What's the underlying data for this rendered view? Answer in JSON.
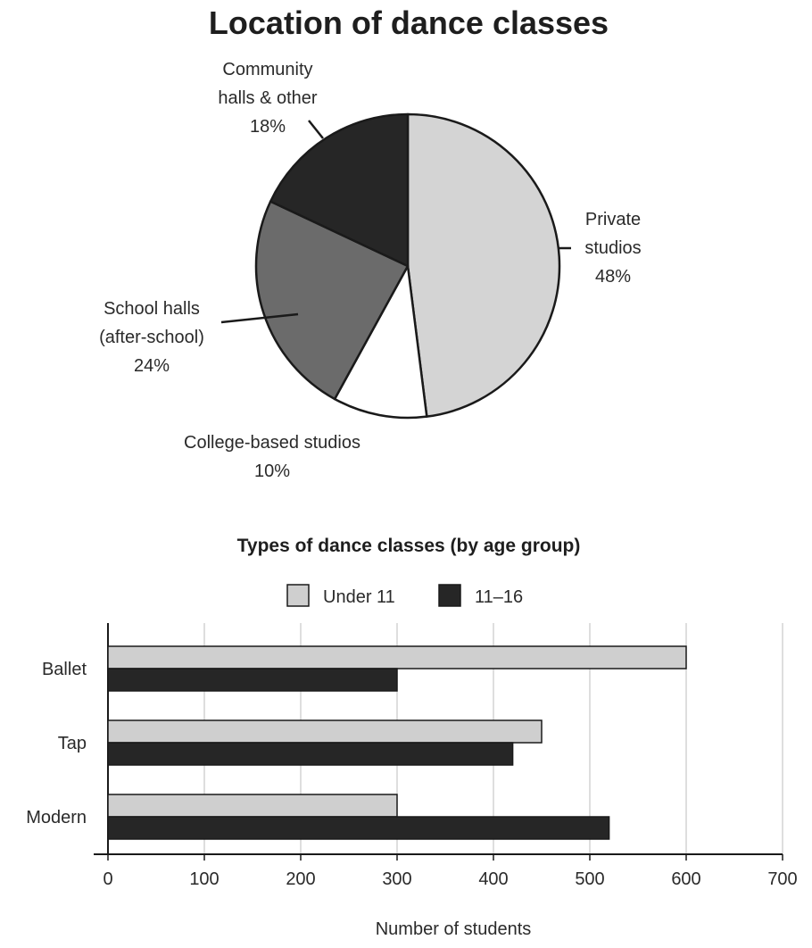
{
  "chart_data": [
    {
      "type": "pie",
      "title": "Location of dance classes",
      "slices": [
        {
          "lines": [
            "Private",
            "studios"
          ],
          "pct_label": "48%",
          "value": 48,
          "color": "#d4d4d4"
        },
        {
          "lines": [
            "College-based studios"
          ],
          "pct_label": "10%",
          "value": 10,
          "color": "#ffffff"
        },
        {
          "lines": [
            "School halls",
            "(after-school)"
          ],
          "pct_label": "24%",
          "value": 24,
          "color": "#6b6b6b"
        },
        {
          "lines": [
            "Community",
            "halls & other"
          ],
          "pct_label": "18%",
          "value": 18,
          "color": "#262626"
        }
      ]
    },
    {
      "type": "bar",
      "orientation": "horizontal",
      "title": "Types of dance classes (by age group)",
      "categories": [
        "Ballet",
        "Tap",
        "Modern"
      ],
      "series": [
        {
          "name": "Under 11",
          "values": [
            600,
            450,
            300
          ],
          "color": "#cfcfcf"
        },
        {
          "name": "11–16",
          "values": [
            300,
            420,
            520
          ],
          "color": "#262626"
        }
      ],
      "xlabel": "Number of students",
      "xlim": [
        0,
        700
      ],
      "xticks": [
        "0",
        "100",
        "200",
        "300",
        "400",
        "500",
        "600",
        "700"
      ],
      "grid": true,
      "legend_position": "top"
    }
  ]
}
